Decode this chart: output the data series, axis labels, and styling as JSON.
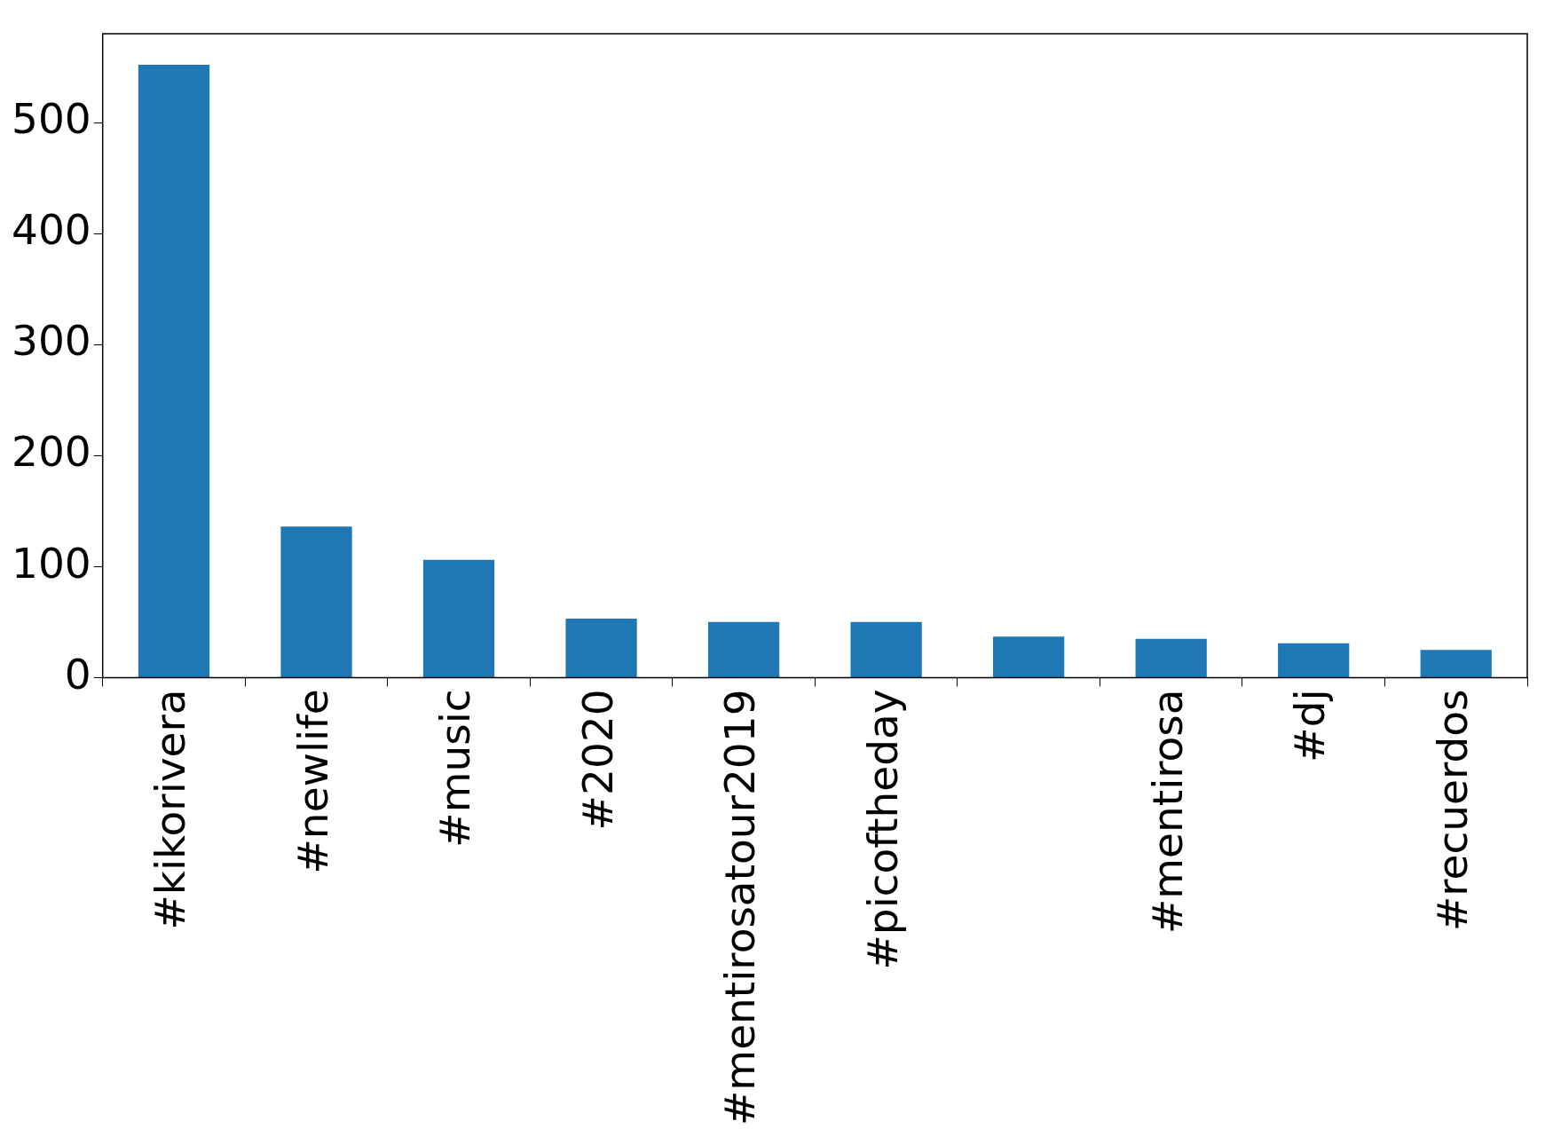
{
  "chart_data": {
    "type": "bar",
    "categories": [
      "#kikorivera",
      "#newlife",
      "#music",
      "#2020",
      "#mentirosatour2019",
      "#picoftheday",
      null,
      "#mentirosa",
      "#dj",
      "#recuerdos"
    ],
    "values": [
      552,
      136,
      106,
      53,
      50,
      50,
      37,
      35,
      31,
      25
    ],
    "color": "#1f77b4",
    "ylim": [
      0,
      580
    ],
    "yticks": [
      0,
      100,
      200,
      300,
      400,
      500
    ]
  }
}
